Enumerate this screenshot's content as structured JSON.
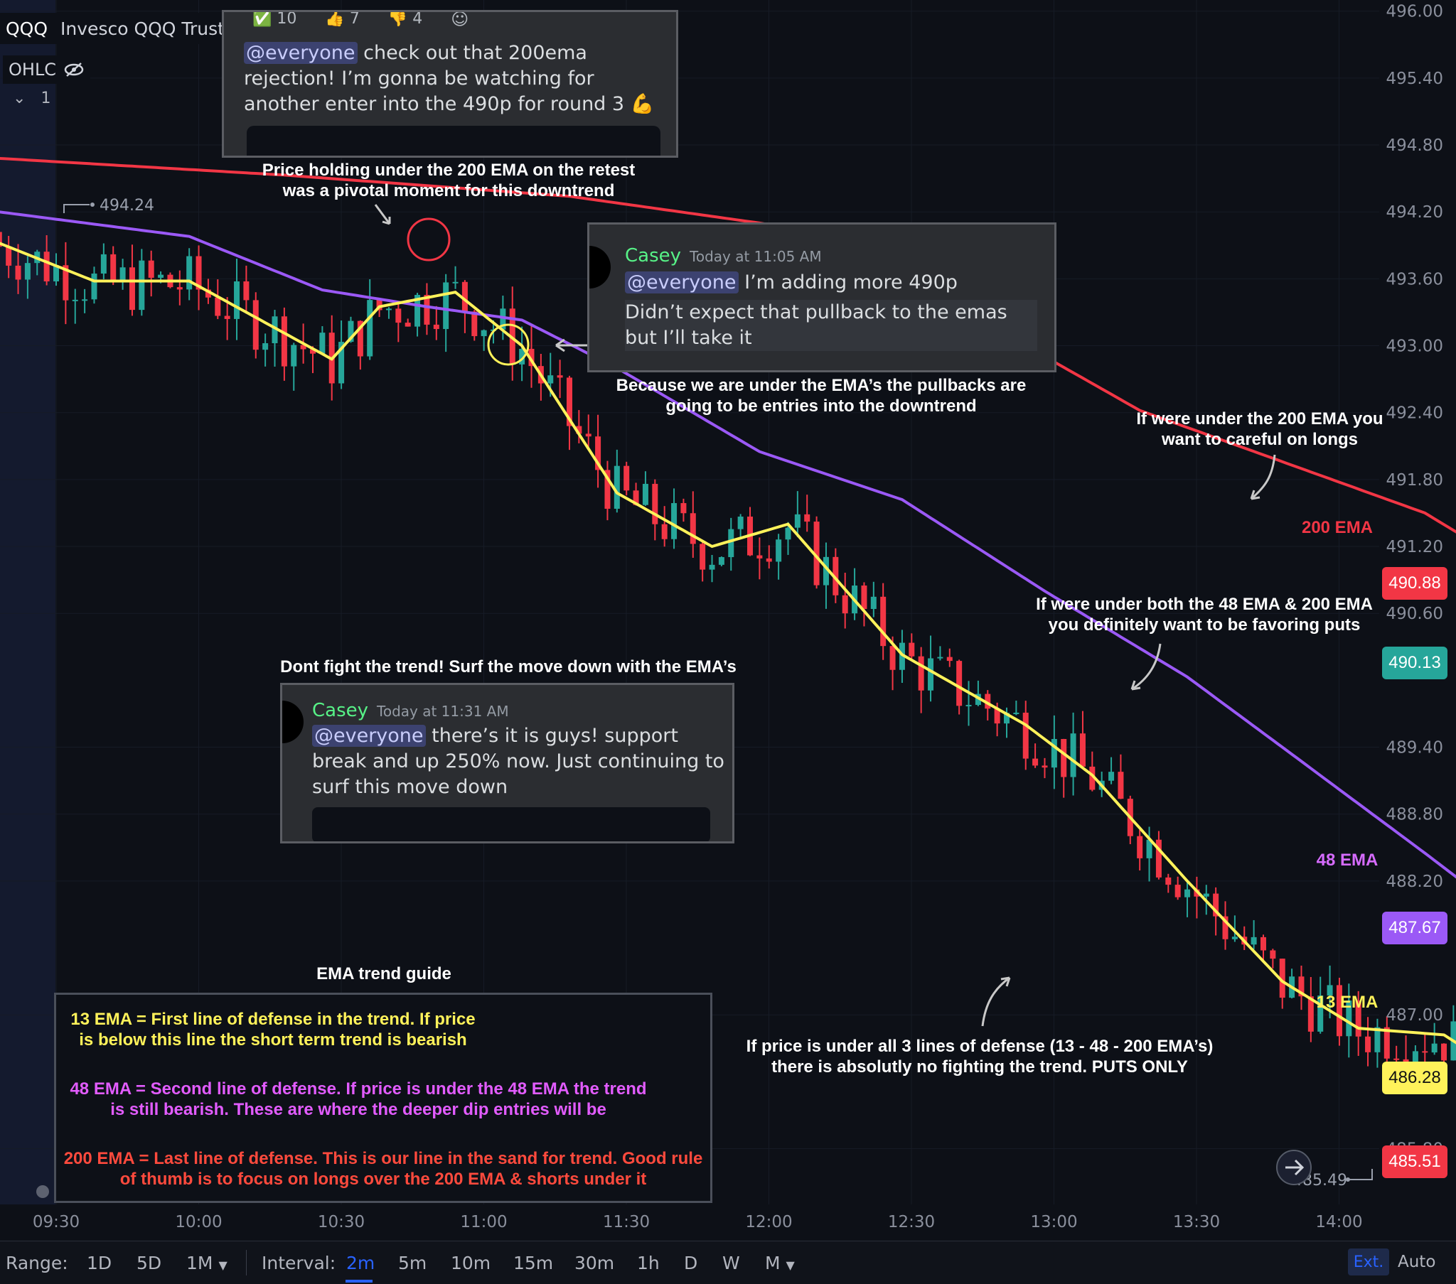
{
  "header": {
    "symbol": "QQQ",
    "name": "Invesco QQQ Trust",
    "ohlc": "OHLC",
    "count": "1"
  },
  "reactions": [
    {
      "emoji": "✅",
      "count": "10"
    },
    {
      "emoji": "👍",
      "count": "7"
    },
    {
      "emoji": "👎",
      "count": "4"
    }
  ],
  "colors": {
    "ema200": "#f23645",
    "ema48": "#9b59f6",
    "ema13": "#fff25a",
    "up": "#26a69a",
    "down": "#f23645",
    "background": "#0d1017"
  },
  "messages": [
    {
      "mention": "@everyone",
      "text": "check out that 200ema rejection! I’m gonna be watching for another enter into the 490p for round 3 💪"
    },
    {
      "author": "Casey",
      "time": "Today at 11:05 AM",
      "mention": "@everyone",
      "text": "I’m adding more 490p",
      "text2": "Didn’t expect that pullback to the emas but I’ll take it"
    },
    {
      "author": "Casey",
      "time": "Today at 11:31 AM",
      "mention": "@everyone",
      "text": "there’s it is guys! support break and up 250% now. Just continuing to surf this move down"
    }
  ],
  "annotations": {
    "pivot": "Price holding under the 200 EMA on the retest was a pivotal moment for this downtrend",
    "pullbacks": "Because we are under the EMA’s the pullbacks are going to be entries into the downtrend",
    "under200": "If were under the 200 EMA you want to careful on longs",
    "under48": "If were under both the 48 EMA & 200 EMA you definitely want to be favoring puts",
    "fight": "Dont fight the trend! Surf the move down with the EMA’s",
    "under_all": "If price is under all 3 lines of defense (13 - 48 - 200 EMA’s) there is absolutly no fighting the trend. PUTS ONLY",
    "label200": "200 EMA",
    "label48": "48 EMA",
    "label13": "13 EMA"
  },
  "guide": {
    "title": "EMA trend guide",
    "ema13": "13 EMA = First line of defense in the trend. If price is below this line the short term trend is bearish",
    "ema48": "48 EMA = Second line of defense. If price is under the 48 EMA the trend is still bearish. These are where the deeper dip entries will be",
    "ema200": "200 EMA = Last line of defense. This is our line in the sand for trend. Good rule of thumb is to focus on longs over the 200 EMA & shorts under it"
  },
  "chart_data": {
    "type": "candlestick",
    "x_ticks": [
      "09:30",
      "10:00",
      "10:30",
      "11:00",
      "11:30",
      "12:00",
      "12:30",
      "13:00",
      "13:30",
      "14:00"
    ],
    "y_ticks": [
      "496.00",
      "495.40",
      "494.80",
      "494.20",
      "493.60",
      "493.00",
      "492.40",
      "491.80",
      "491.20",
      "490.60",
      "489.40",
      "488.80",
      "488.20",
      "487.00",
      "485.80"
    ],
    "ylim": [
      485.3,
      496.1
    ],
    "hi_marker": "494.24",
    "lo_marker": "485.49",
    "price_labels": {
      "ema200": "490.88",
      "last_green": "490.13",
      "ema48": "487.67",
      "ema13": "486.28",
      "last": "485.51"
    },
    "ema200": [
      [
        0,
        494.68
      ],
      [
        30,
        494.53
      ],
      [
        60,
        494.34
      ],
      [
        80,
        494.1
      ],
      [
        96,
        493.88
      ],
      [
        108,
        493.0
      ],
      [
        120,
        492.42
      ],
      [
        150,
        491.5
      ],
      [
        162,
        490.88
      ]
    ],
    "ema48": [
      [
        0,
        494.2
      ],
      [
        20,
        493.98
      ],
      [
        34,
        493.5
      ],
      [
        45,
        493.35
      ],
      [
        55,
        493.23
      ],
      [
        65,
        492.8
      ],
      [
        80,
        492.05
      ],
      [
        95,
        491.62
      ],
      [
        110,
        490.8
      ],
      [
        125,
        490.03
      ],
      [
        135,
        489.4
      ],
      [
        150,
        488.45
      ],
      [
        162,
        487.67
      ]
    ],
    "ema13": [
      [
        0,
        493.92
      ],
      [
        10,
        493.58
      ],
      [
        20,
        493.58
      ],
      [
        35,
        492.88
      ],
      [
        40,
        493.35
      ],
      [
        48,
        493.48
      ],
      [
        55,
        493.0
      ],
      [
        65,
        491.68
      ],
      [
        75,
        491.2
      ],
      [
        83,
        491.4
      ],
      [
        95,
        490.23
      ],
      [
        108,
        489.6
      ],
      [
        115,
        489.15
      ],
      [
        125,
        488.2
      ],
      [
        135,
        487.3
      ],
      [
        143,
        486.88
      ],
      [
        152,
        486.82
      ],
      [
        162,
        486.28
      ]
    ]
  },
  "toolbar": {
    "range_label": "Range:",
    "ranges": [
      "1D",
      "5D",
      "1M"
    ],
    "interval_label": "Interval:",
    "intervals": [
      "2m",
      "5m",
      "10m",
      "15m",
      "30m",
      "1h",
      "D",
      "W",
      "M"
    ],
    "ext": "Ext.",
    "auto": "Auto"
  }
}
